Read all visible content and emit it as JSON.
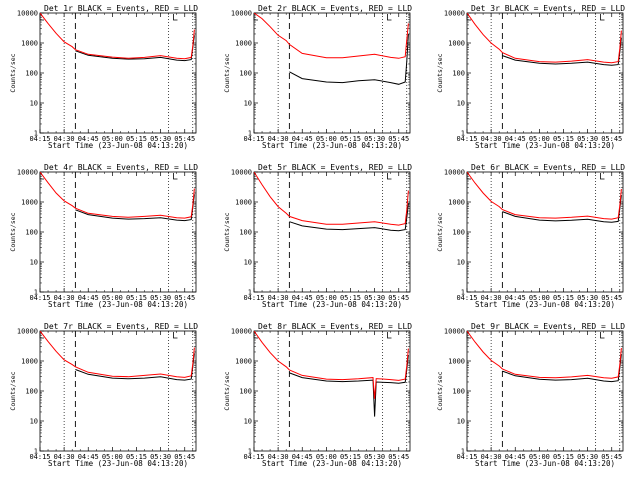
{
  "chart_data": [
    {
      "type": "line",
      "title": "Det 1r BLACK = Events, RED = LLD",
      "xlabel": "Start Time (23-Jun-08 04:13:20)",
      "ylabel": "Counts/sec",
      "yscale": "log",
      "ylim": [
        1,
        10000
      ],
      "xlim": [
        "04:15",
        "05:52"
      ],
      "x_ticks": [
        "04:15",
        "04:30",
        "04:45",
        "05:00",
        "05:15",
        "05:30",
        "05:45"
      ],
      "y_ticks": [
        "1",
        "10",
        "100",
        "1000",
        "10000"
      ],
      "vlines_dotted": [
        "04:30",
        "05:35",
        "05:50"
      ],
      "vlines_dashed": [
        "04:37"
      ],
      "corner_marks": [
        "04:15",
        "05:38"
      ],
      "series": [
        {
          "role": "events",
          "color": "#000000",
          "x": [
            "04:37",
            "04:45",
            "05:00",
            "05:10",
            "05:20",
            "05:30",
            "05:40",
            "05:45",
            "05:49",
            "05:50",
            "05:51"
          ],
          "y": [
            550,
            390,
            310,
            290,
            300,
            330,
            270,
            260,
            280,
            700,
            1800
          ]
        },
        {
          "role": "lld",
          "color": "#ff0000",
          "x": [
            "04:15",
            "04:20",
            "04:25",
            "04:30",
            "04:35",
            "04:37",
            "04:45",
            "05:00",
            "05:10",
            "05:20",
            "05:30",
            "05:40",
            "05:45",
            "05:49",
            "05:50",
            "05:51"
          ],
          "y": [
            10000,
            4500,
            2100,
            1100,
            750,
            600,
            420,
            340,
            310,
            330,
            380,
            310,
            300,
            330,
            800,
            2800
          ]
        }
      ]
    },
    {
      "type": "line",
      "title": "Det 2r BLACK = Events, RED = LLD",
      "xlabel": "Start Time (23-Jun-08 04:13:20)",
      "ylabel": "Counts/sec",
      "yscale": "log",
      "ylim": [
        1,
        10000
      ],
      "xlim": [
        "04:15",
        "05:52"
      ],
      "x_ticks": [
        "04:15",
        "04:30",
        "04:45",
        "05:00",
        "05:15",
        "05:30",
        "05:45"
      ],
      "y_ticks": [
        "1",
        "10",
        "100",
        "1000",
        "10000"
      ],
      "vlines_dotted": [
        "04:30",
        "05:35",
        "05:50"
      ],
      "vlines_dashed": [
        "04:37"
      ],
      "corner_marks": [
        "04:15",
        "05:38"
      ],
      "series": [
        {
          "role": "events",
          "color": "#000000",
          "x": [
            "04:37",
            "04:45",
            "05:00",
            "05:10",
            "05:20",
            "05:30",
            "05:40",
            "05:45",
            "05:49",
            "05:50",
            "05:51"
          ],
          "y": [
            110,
            65,
            50,
            48,
            55,
            60,
            48,
            42,
            50,
            250,
            2000
          ]
        },
        {
          "role": "lld",
          "color": "#ff0000",
          "x": [
            "04:15",
            "04:20",
            "04:25",
            "04:30",
            "04:35",
            "04:37",
            "04:45",
            "05:00",
            "05:10",
            "05:20",
            "05:30",
            "05:40",
            "05:45",
            "05:49",
            "05:50",
            "05:51"
          ],
          "y": [
            10000,
            6500,
            3500,
            1800,
            1200,
            900,
            450,
            320,
            320,
            370,
            420,
            330,
            310,
            350,
            1300,
            4500
          ]
        }
      ]
    },
    {
      "type": "line",
      "title": "Det 3r BLACK = Events, RED = LLD",
      "xlabel": "Start Time (23-Jun-08 04:13:20)",
      "ylabel": "Counts/sec",
      "yscale": "log",
      "ylim": [
        1,
        10000
      ],
      "xlim": [
        "04:15",
        "05:52"
      ],
      "x_ticks": [
        "04:15",
        "04:30",
        "04:45",
        "05:00",
        "05:15",
        "05:30",
        "05:45"
      ],
      "y_ticks": [
        "1",
        "10",
        "100",
        "1000",
        "10000"
      ],
      "vlines_dotted": [
        "04:30",
        "05:35",
        "05:50"
      ],
      "vlines_dashed": [
        "04:37"
      ],
      "corner_marks": [
        "04:15",
        "05:38"
      ],
      "series": [
        {
          "role": "events",
          "color": "#000000",
          "x": [
            "04:37",
            "04:45",
            "05:00",
            "05:10",
            "05:20",
            "05:30",
            "05:40",
            "05:45",
            "05:49",
            "05:50",
            "05:51"
          ],
          "y": [
            380,
            270,
            210,
            200,
            210,
            230,
            190,
            180,
            190,
            500,
            1500
          ]
        },
        {
          "role": "lld",
          "color": "#ff0000",
          "x": [
            "04:15",
            "04:20",
            "04:25",
            "04:30",
            "04:35",
            "04:37",
            "04:45",
            "05:00",
            "05:10",
            "05:20",
            "05:30",
            "05:40",
            "05:45",
            "05:49",
            "05:50",
            "05:51"
          ],
          "y": [
            10000,
            4200,
            1900,
            1000,
            620,
            480,
            310,
            240,
            230,
            250,
            280,
            230,
            220,
            240,
            650,
            2600
          ]
        }
      ]
    },
    {
      "type": "line",
      "title": "Det 4r BLACK = Events, RED = LLD",
      "xlabel": "Start Time (23-Jun-08 04:13:20)",
      "ylabel": "Counts/sec",
      "yscale": "log",
      "ylim": [
        1,
        10000
      ],
      "xlim": [
        "04:15",
        "05:52"
      ],
      "x_ticks": [
        "04:15",
        "04:30",
        "04:45",
        "05:00",
        "05:15",
        "05:30",
        "05:45"
      ],
      "y_ticks": [
        "1",
        "10",
        "100",
        "1000",
        "10000"
      ],
      "vlines_dotted": [
        "04:30",
        "05:35",
        "05:50"
      ],
      "vlines_dashed": [
        "04:37"
      ],
      "corner_marks": [
        "04:15",
        "05:38"
      ],
      "series": [
        {
          "role": "events",
          "color": "#000000",
          "x": [
            "04:37",
            "04:45",
            "05:00",
            "05:10",
            "05:20",
            "05:30",
            "05:40",
            "05:45",
            "05:49",
            "05:50",
            "05:51"
          ],
          "y": [
            550,
            380,
            290,
            270,
            280,
            300,
            250,
            240,
            260,
            650,
            1800
          ]
        },
        {
          "role": "lld",
          "color": "#ff0000",
          "x": [
            "04:15",
            "04:20",
            "04:25",
            "04:30",
            "04:35",
            "04:37",
            "04:45",
            "05:00",
            "05:10",
            "05:20",
            "05:30",
            "05:40",
            "05:45",
            "05:49",
            "05:50",
            "05:51"
          ],
          "y": [
            10000,
            4400,
            2000,
            1100,
            750,
            620,
            420,
            330,
            310,
            330,
            360,
            300,
            290,
            320,
            800,
            2800
          ]
        }
      ]
    },
    {
      "type": "line",
      "title": "Det 5r BLACK = Events, RED = LLD",
      "xlabel": "Start Time (23-Jun-08 04:13:20)",
      "ylabel": "Counts/sec",
      "yscale": "log",
      "ylim": [
        1,
        10000
      ],
      "xlim": [
        "04:15",
        "05:52"
      ],
      "x_ticks": [
        "04:15",
        "04:30",
        "04:45",
        "05:00",
        "05:15",
        "05:30",
        "05:45"
      ],
      "y_ticks": [
        "1",
        "10",
        "100",
        "1000",
        "10000"
      ],
      "vlines_dotted": [
        "04:30",
        "05:35",
        "05:50"
      ],
      "vlines_dashed": [
        "04:37"
      ],
      "corner_marks": [
        "04:15",
        "05:38"
      ],
      "series": [
        {
          "role": "events",
          "color": "#000000",
          "x": [
            "04:37",
            "04:45",
            "05:00",
            "05:10",
            "05:20",
            "05:30",
            "05:40",
            "05:45",
            "05:49",
            "05:50",
            "05:51"
          ],
          "y": [
            220,
            160,
            125,
            120,
            130,
            140,
            115,
            110,
            120,
            300,
            900
          ]
        },
        {
          "role": "lld",
          "color": "#ff0000",
          "x": [
            "04:15",
            "04:20",
            "04:25",
            "04:30",
            "04:35",
            "04:37",
            "04:45",
            "05:00",
            "05:10",
            "05:20",
            "05:30",
            "05:40",
            "05:45",
            "05:49",
            "05:50",
            "05:51"
          ],
          "y": [
            10000,
            3800,
            1500,
            700,
            420,
            330,
            240,
            180,
            180,
            200,
            220,
            180,
            170,
            190,
            550,
            2400
          ]
        }
      ]
    },
    {
      "type": "line",
      "title": "Det 6r BLACK = Events, RED = LLD",
      "xlabel": "Start Time (23-Jun-08 04:13:20)",
      "ylabel": "Counts/sec",
      "yscale": "log",
      "ylim": [
        1,
        10000
      ],
      "xlim": [
        "04:15",
        "05:52"
      ],
      "x_ticks": [
        "04:15",
        "04:30",
        "04:45",
        "05:00",
        "05:15",
        "05:30",
        "05:45"
      ],
      "y_ticks": [
        "1",
        "10",
        "100",
        "1000",
        "10000"
      ],
      "vlines_dotted": [
        "04:30",
        "05:35",
        "05:50"
      ],
      "vlines_dashed": [
        "04:37"
      ],
      "corner_marks": [
        "04:15",
        "05:38"
      ],
      "series": [
        {
          "role": "events",
          "color": "#000000",
          "x": [
            "04:37",
            "04:45",
            "05:00",
            "05:10",
            "05:20",
            "05:30",
            "05:40",
            "05:45",
            "05:49",
            "05:50",
            "05:51"
          ],
          "y": [
            480,
            330,
            250,
            235,
            245,
            265,
            220,
            210,
            225,
            600,
            1700
          ]
        },
        {
          "role": "lld",
          "color": "#ff0000",
          "x": [
            "04:15",
            "04:20",
            "04:25",
            "04:30",
            "04:35",
            "04:37",
            "04:45",
            "05:00",
            "05:10",
            "05:20",
            "05:30",
            "05:40",
            "05:45",
            "05:49",
            "05:50",
            "05:51"
          ],
          "y": [
            10000,
            4300,
            2000,
            1050,
            700,
            560,
            380,
            300,
            290,
            310,
            340,
            280,
            270,
            300,
            750,
            2700
          ]
        }
      ]
    },
    {
      "type": "line",
      "title": "Det 7r BLACK = Events, RED = LLD",
      "xlabel": "Start Time (23-Jun-08 04:13:20)",
      "ylabel": "Counts/sec",
      "yscale": "log",
      "ylim": [
        1,
        10000
      ],
      "xlim": [
        "04:15",
        "05:52"
      ],
      "x_ticks": [
        "04:15",
        "04:30",
        "04:45",
        "05:00",
        "05:15",
        "05:30",
        "05:45"
      ],
      "y_ticks": [
        "1",
        "10",
        "100",
        "1000",
        "10000"
      ],
      "vlines_dotted": [
        "04:30",
        "05:35",
        "05:50"
      ],
      "vlines_dashed": [
        "04:37"
      ],
      "corner_marks": [
        "04:15",
        "05:38"
      ],
      "series": [
        {
          "role": "events",
          "color": "#000000",
          "x": [
            "04:37",
            "04:45",
            "05:00",
            "05:10",
            "05:20",
            "05:30",
            "05:40",
            "05:45",
            "05:49",
            "05:50",
            "05:51"
          ],
          "y": [
            520,
            360,
            270,
            255,
            270,
            300,
            240,
            230,
            250,
            650,
            1800
          ]
        },
        {
          "role": "lld",
          "color": "#ff0000",
          "x": [
            "04:15",
            "04:20",
            "04:25",
            "04:30",
            "04:35",
            "04:37",
            "04:45",
            "05:00",
            "05:10",
            "05:20",
            "05:30",
            "05:40",
            "05:45",
            "05:49",
            "05:50",
            "05:51"
          ],
          "y": [
            10000,
            4500,
            2100,
            1100,
            760,
            640,
            420,
            310,
            300,
            330,
            370,
            300,
            285,
            320,
            800,
            2800
          ]
        }
      ]
    },
    {
      "type": "line",
      "title": "Det 8r BLACK = Events, RED = LLD",
      "xlabel": "Start Time (23-Jun-08 04:13:20)",
      "ylabel": "Counts/sec",
      "yscale": "log",
      "ylim": [
        1,
        10000
      ],
      "xlim": [
        "04:15",
        "05:52"
      ],
      "x_ticks": [
        "04:15",
        "04:30",
        "04:45",
        "05:00",
        "05:15",
        "05:30",
        "05:45"
      ],
      "y_ticks": [
        "1",
        "10",
        "100",
        "1000",
        "10000"
      ],
      "vlines_dotted": [
        "04:30",
        "05:35",
        "05:50"
      ],
      "vlines_dashed": [
        "04:37"
      ],
      "corner_marks": [
        "04:15",
        "05:38"
      ],
      "series": [
        {
          "role": "events",
          "color": "#000000",
          "x": [
            "04:37",
            "04:45",
            "05:00",
            "05:10",
            "05:20",
            "05:29",
            "05:30",
            "05:31",
            "05:40",
            "05:45",
            "05:49",
            "05:50",
            "05:51"
          ],
          "y": [
            400,
            280,
            215,
            205,
            215,
            230,
            14,
            200,
            190,
            180,
            195,
            520,
            1600
          ]
        },
        {
          "role": "lld",
          "color": "#ff0000",
          "x": [
            "04:15",
            "04:20",
            "04:25",
            "04:30",
            "04:35",
            "04:37",
            "04:45",
            "05:00",
            "05:10",
            "05:20",
            "05:29",
            "05:30",
            "05:31",
            "05:40",
            "05:45",
            "05:49",
            "05:50",
            "05:51"
          ],
          "y": [
            10000,
            4200,
            1900,
            1000,
            640,
            500,
            330,
            250,
            240,
            255,
            280,
            55,
            260,
            240,
            225,
            250,
            700,
            2600
          ]
        }
      ]
    },
    {
      "type": "line",
      "title": "Det 9r BLACK = Events, RED = LLD",
      "xlabel": "Start Time (23-Jun-08 04:13:20)",
      "ylabel": "Counts/sec",
      "yscale": "log",
      "ylim": [
        1,
        10000
      ],
      "xlim": [
        "04:15",
        "05:52"
      ],
      "x_ticks": [
        "04:15",
        "04:30",
        "04:45",
        "05:00",
        "05:15",
        "05:30",
        "05:45"
      ],
      "y_ticks": [
        "1",
        "10",
        "100",
        "1000",
        "10000"
      ],
      "vlines_dotted": [
        "04:30",
        "05:35",
        "05:50"
      ],
      "vlines_dashed": [
        "04:37"
      ],
      "corner_marks": [
        "04:15",
        "05:38"
      ],
      "series": [
        {
          "role": "events",
          "color": "#000000",
          "x": [
            "04:37",
            "04:45",
            "05:00",
            "05:10",
            "05:20",
            "05:30",
            "05:40",
            "05:45",
            "05:49",
            "05:50",
            "05:51"
          ],
          "y": [
            460,
            320,
            245,
            230,
            240,
            265,
            215,
            205,
            220,
            580,
            1700
          ]
        },
        {
          "role": "lld",
          "color": "#ff0000",
          "x": [
            "04:15",
            "04:20",
            "04:25",
            "04:30",
            "04:35",
            "04:37",
            "04:45",
            "05:00",
            "05:10",
            "05:20",
            "05:30",
            "05:40",
            "05:45",
            "05:49",
            "05:50",
            "05:51"
          ],
          "y": [
            10000,
            4300,
            2000,
            1050,
            680,
            540,
            360,
            285,
            275,
            295,
            330,
            275,
            265,
            295,
            750,
            2700
          ]
        }
      ]
    }
  ]
}
